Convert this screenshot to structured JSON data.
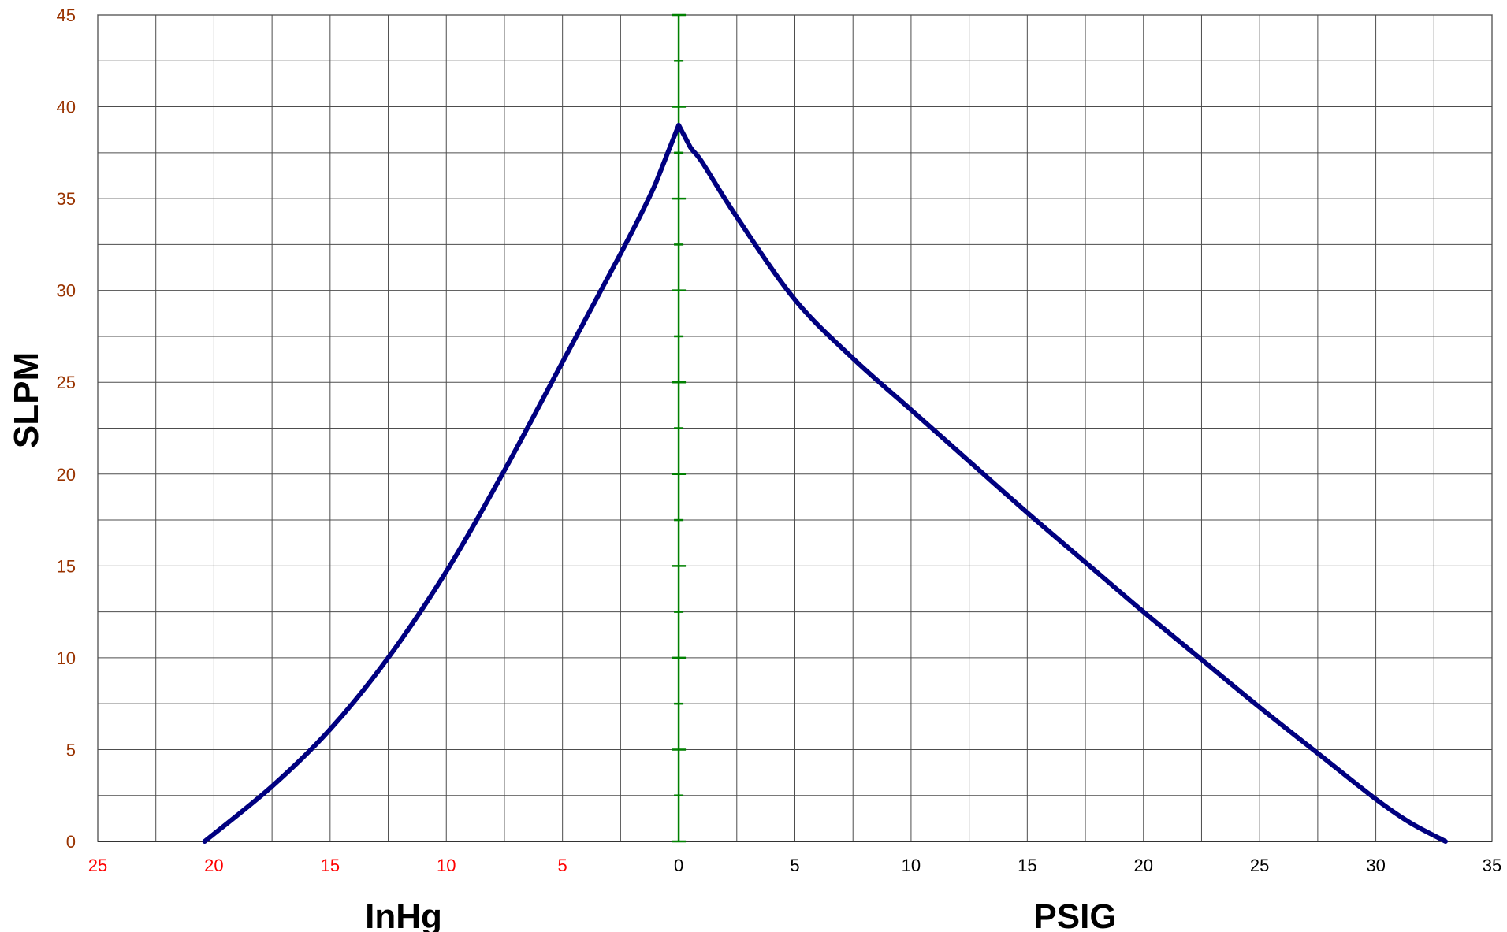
{
  "chart_data": {
    "type": "line",
    "ylabel": "SLPM",
    "xlabel_left": "InHg",
    "xlabel_right": "PSIG",
    "ylim": [
      0,
      45
    ],
    "y_ticks": [
      "0",
      "5",
      "10",
      "15",
      "20",
      "25",
      "30",
      "35",
      "40",
      "45"
    ],
    "x_axis": {
      "vacuum_ticks": [
        "25",
        "20",
        "15",
        "10",
        "5"
      ],
      "pressure_ticks": [
        "0",
        "5",
        "10",
        "15",
        "20",
        "25",
        "30",
        "35"
      ],
      "vacuum_units": "InHg",
      "pressure_units": "PSIG"
    },
    "grid": true,
    "zero_line_color": "#008000",
    "series": [
      {
        "color": "#000080",
        "points": [
          {
            "x": -20.4,
            "y": 0
          },
          {
            "x": -17.5,
            "y": 3
          },
          {
            "x": -15,
            "y": 6.1
          },
          {
            "x": -12.5,
            "y": 10
          },
          {
            "x": -10,
            "y": 14.7
          },
          {
            "x": -7.5,
            "y": 20.2
          },
          {
            "x": -5,
            "y": 26.1
          },
          {
            "x": -2.5,
            "y": 32
          },
          {
            "x": -1,
            "y": 35.8
          },
          {
            "x": 0,
            "y": 39
          },
          {
            "x": 0.5,
            "y": 37.8
          },
          {
            "x": 1,
            "y": 37
          },
          {
            "x": 2.5,
            "y": 34
          },
          {
            "x": 5,
            "y": 29.5
          },
          {
            "x": 7.5,
            "y": 26.3
          },
          {
            "x": 10,
            "y": 23.5
          },
          {
            "x": 12.5,
            "y": 20.7
          },
          {
            "x": 15,
            "y": 17.9
          },
          {
            "x": 17.5,
            "y": 15.2
          },
          {
            "x": 20,
            "y": 12.5
          },
          {
            "x": 22.5,
            "y": 9.9
          },
          {
            "x": 25,
            "y": 7.3
          },
          {
            "x": 27.5,
            "y": 4.8
          },
          {
            "x": 30,
            "y": 2.3
          },
          {
            "x": 31.5,
            "y": 1
          },
          {
            "x": 33,
            "y": 0
          }
        ]
      }
    ]
  }
}
